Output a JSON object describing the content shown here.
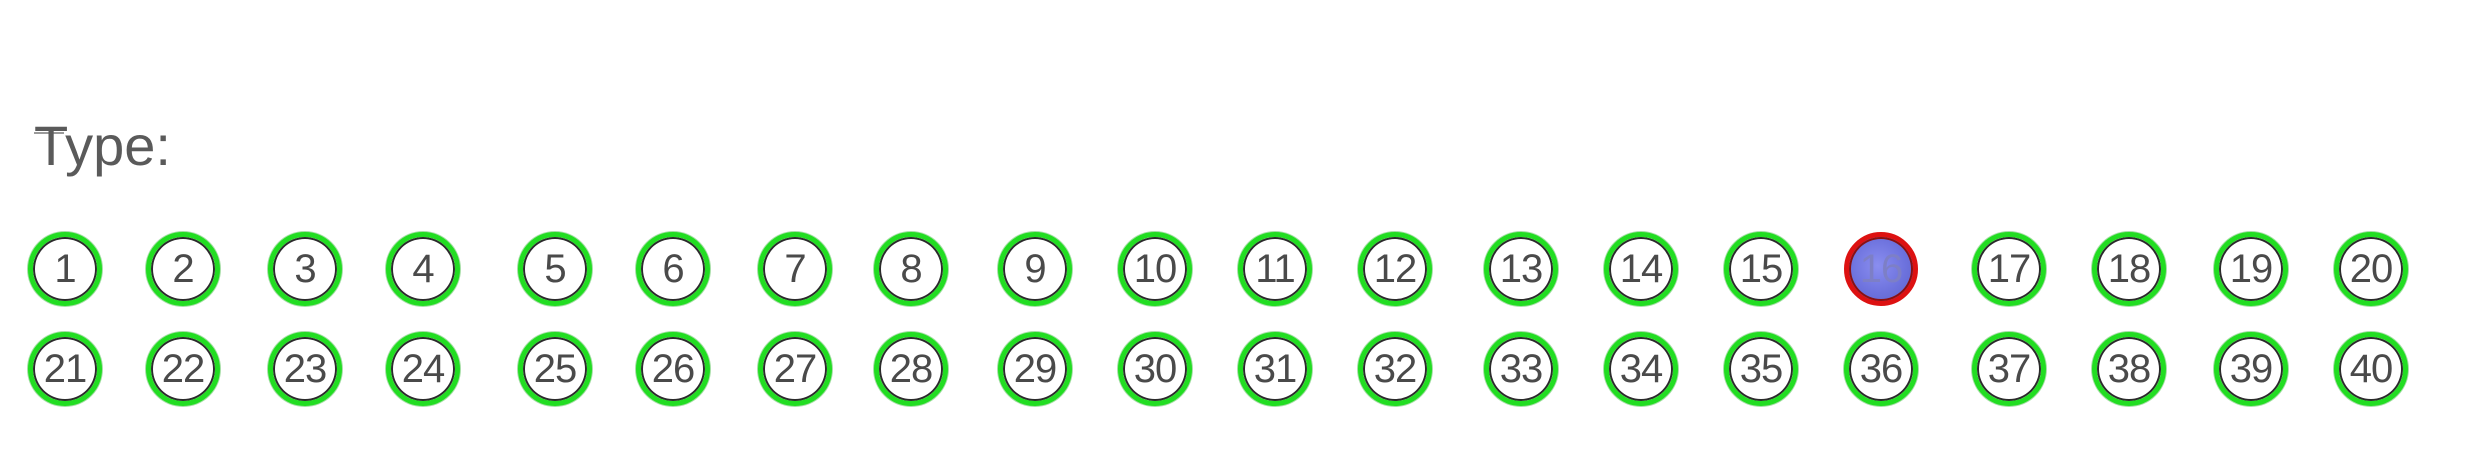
{
  "form": {
    "type_label": "Type:",
    "selected": 16,
    "colors": {
      "ring": "#22dd22",
      "selected_ring": "#dd1111",
      "selected_fill": "#6d72dd",
      "text": "#4a4a4a"
    },
    "rows": [
      {
        "bubbles": [
          {
            "label": "1"
          },
          {
            "label": "2"
          },
          {
            "label": "3"
          },
          {
            "label": "4"
          },
          {
            "label": "5"
          },
          {
            "label": "6"
          },
          {
            "label": "7"
          },
          {
            "label": "8"
          },
          {
            "label": "9"
          },
          {
            "label": "10"
          },
          {
            "label": "11"
          },
          {
            "label": "12"
          },
          {
            "label": "13"
          },
          {
            "label": "14"
          },
          {
            "label": "15"
          },
          {
            "label": "16"
          },
          {
            "label": "17"
          },
          {
            "label": "18"
          },
          {
            "label": "19"
          },
          {
            "label": "20"
          }
        ]
      },
      {
        "bubbles": [
          {
            "label": "21"
          },
          {
            "label": "22"
          },
          {
            "label": "23"
          },
          {
            "label": "24"
          },
          {
            "label": "25"
          },
          {
            "label": "26"
          },
          {
            "label": "27"
          },
          {
            "label": "28"
          },
          {
            "label": "29"
          },
          {
            "label": "30"
          },
          {
            "label": "31"
          },
          {
            "label": "32"
          },
          {
            "label": "33"
          },
          {
            "label": "34"
          },
          {
            "label": "35"
          },
          {
            "label": "36"
          },
          {
            "label": "37"
          },
          {
            "label": "38"
          },
          {
            "label": "39"
          },
          {
            "label": "40"
          }
        ]
      }
    ]
  }
}
